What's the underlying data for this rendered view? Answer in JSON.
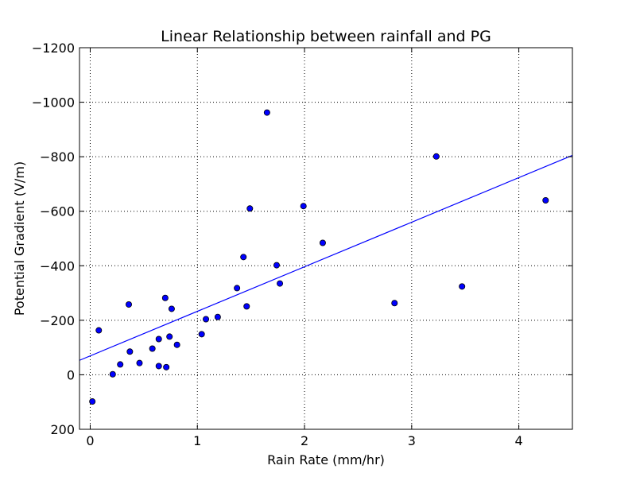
{
  "chart_data": {
    "type": "scatter",
    "title": "Linear Relationship between rainfall and PG",
    "xlabel": "Rain Rate (mm/hr)",
    "ylabel": "Potential Gradient (V/m)",
    "xlim": [
      -0.1,
      4.5
    ],
    "ylim": [
      200,
      -1200
    ],
    "y_inverted": true,
    "grid": true,
    "x_ticks": [
      0,
      1,
      2,
      3,
      4
    ],
    "x_tick_labels": [
      "0",
      "1",
      "2",
      "3",
      "4"
    ],
    "y_ticks": [
      200,
      0,
      -200,
      -400,
      -600,
      -800,
      -1000,
      -1200
    ],
    "y_tick_labels": [
      "200",
      "0",
      "−200",
      "−400",
      "−600",
      "−800",
      "−1000",
      "−1200"
    ],
    "points_color": "#0000ff",
    "line_color": "#0000ff",
    "points": [
      {
        "x": 0.02,
        "y": 98
      },
      {
        "x": 0.08,
        "y": -163
      },
      {
        "x": 0.21,
        "y": -2
      },
      {
        "x": 0.28,
        "y": -38
      },
      {
        "x": 0.36,
        "y": -258
      },
      {
        "x": 0.37,
        "y": -85
      },
      {
        "x": 0.46,
        "y": -43
      },
      {
        "x": 0.58,
        "y": -96
      },
      {
        "x": 0.64,
        "y": -131
      },
      {
        "x": 0.64,
        "y": -32
      },
      {
        "x": 0.7,
        "y": -282
      },
      {
        "x": 0.71,
        "y": -28
      },
      {
        "x": 0.74,
        "y": -140
      },
      {
        "x": 0.76,
        "y": -242
      },
      {
        "x": 0.81,
        "y": -110
      },
      {
        "x": 1.04,
        "y": -149
      },
      {
        "x": 1.08,
        "y": -204
      },
      {
        "x": 1.19,
        "y": -212
      },
      {
        "x": 1.37,
        "y": -318
      },
      {
        "x": 1.43,
        "y": -432
      },
      {
        "x": 1.46,
        "y": -251
      },
      {
        "x": 1.49,
        "y": -610
      },
      {
        "x": 1.65,
        "y": -962
      },
      {
        "x": 1.74,
        "y": -402
      },
      {
        "x": 1.77,
        "y": -335
      },
      {
        "x": 1.99,
        "y": -619
      },
      {
        "x": 2.17,
        "y": -484
      },
      {
        "x": 2.84,
        "y": -263
      },
      {
        "x": 3.23,
        "y": -801
      },
      {
        "x": 3.47,
        "y": -324
      },
      {
        "x": 4.25,
        "y": -640
      }
    ],
    "fit_line": {
      "x": [
        -0.1,
        4.5
      ],
      "y": [
        -53,
        -805
      ]
    }
  }
}
